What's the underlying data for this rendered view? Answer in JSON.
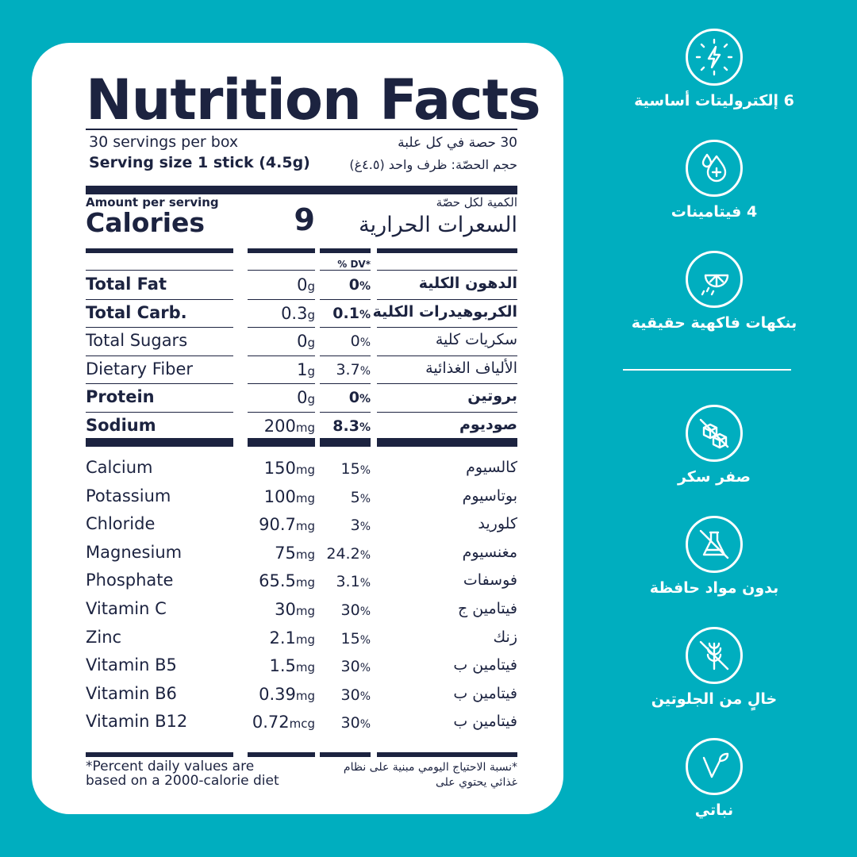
{
  "label": {
    "title": "Nutrition Facts",
    "servings_en": "30 servings per box",
    "servings_ar": "30 حصة في كل علبة",
    "serving_size_en_label": "Serving size",
    "serving_size_en_value": "1 stick (4.5g)",
    "serving_size_ar": "حجم الحصّة: ظرف واحد (٤.٥غ)",
    "amount_per_serving_en": "Amount per serving",
    "amount_per_serving_ar": "الكمية لكل حصّة",
    "calories_en": "Calories",
    "calories_value": "9",
    "calories_ar": "السعرات الحرارية",
    "dv_header": "% DV*",
    "nutrients": [
      {
        "en": "Total Fat",
        "amount": "0",
        "unit": "g",
        "dv": "0",
        "ar": "الدهون الكلية",
        "bold": true
      },
      {
        "en": "Total Carb.",
        "amount": "0.3",
        "unit": "g",
        "dv": "0.1",
        "ar": "الكربوهيدرات الكلية",
        "bold": true
      },
      {
        "en": "Total Sugars",
        "amount": "0",
        "unit": "g",
        "dv": "0",
        "ar": "سكريات كلية",
        "bold": false
      },
      {
        "en": "Dietary Fiber",
        "amount": "1",
        "unit": "g",
        "dv": "3.7",
        "ar": "الألياف الغذائية",
        "bold": false
      },
      {
        "en": "Protein",
        "amount": "0",
        "unit": "g",
        "dv": "0",
        "ar": "بروتين",
        "bold": true
      },
      {
        "en": "Sodium",
        "amount": "200",
        "unit": "mg",
        "dv": "8.3",
        "ar": "صوديوم",
        "bold": true
      }
    ],
    "minerals": [
      {
        "en": "Calcium",
        "amount": "150",
        "unit": "mg",
        "dv": "15",
        "ar": "كالسيوم"
      },
      {
        "en": "Potassium",
        "amount": "100",
        "unit": "mg",
        "dv": "5",
        "ar": "بوتاسيوم"
      },
      {
        "en": "Chloride",
        "amount": "90.7",
        "unit": "mg",
        "dv": "3",
        "ar": "كلوريد"
      },
      {
        "en": "Magnesium",
        "amount": "75",
        "unit": "mg",
        "dv": "24.2",
        "ar": "مغنسيوم"
      },
      {
        "en": "Phosphate",
        "amount": "65.5",
        "unit": "mg",
        "dv": "3.1",
        "ar": "فوسفات"
      },
      {
        "en": "Vitamin C",
        "amount": "30",
        "unit": "mg",
        "dv": "30",
        "ar": "فيتامين ج"
      },
      {
        "en": "Zinc",
        "amount": "2.1",
        "unit": "mg",
        "dv": "15",
        "ar": "زنك"
      },
      {
        "en": "Vitamin B5",
        "amount": "1.5",
        "unit": "mg",
        "dv": "30",
        "ar": "فيتامين ب"
      },
      {
        "en": "Vitamin B6",
        "amount": "0.39",
        "unit": "mg",
        "dv": "30",
        "ar": "فيتامين ب"
      },
      {
        "en": "Vitamin B12",
        "amount": "0.72",
        "unit": "mcg",
        "dv": "30",
        "ar": "فيتامين ب"
      }
    ],
    "pct": "%",
    "footnote_en_1": "*Percent daily values are",
    "footnote_en_2": "based on a 2000-calorie diet",
    "footnote_ar_1": "*نسبة الاحتياج اليومي مبنية على نظام",
    "footnote_ar_2": "غذائي يحتوي على"
  },
  "features": [
    {
      "label": "6 إلكتروليتات أساسية",
      "icon": "lightning-icon"
    },
    {
      "label": "4 فيتامينات",
      "icon": "droplet-plus-icon"
    },
    {
      "label": "بنكهات فاكهية حقيقية",
      "icon": "citrus-icon"
    },
    {
      "label": "صفر سكر",
      "icon": "no-sugar-cubes-icon"
    },
    {
      "label": "بدون مواد حافظة",
      "icon": "no-preservatives-flask-icon"
    },
    {
      "label": "خالٍ من الجلوتين",
      "icon": "no-gluten-wheat-icon"
    },
    {
      "label": "نباتي",
      "icon": "vegan-leaf-icon"
    }
  ],
  "colors": {
    "background": "#00aebf",
    "ink": "#1c2340",
    "panel": "#ffffff"
  }
}
